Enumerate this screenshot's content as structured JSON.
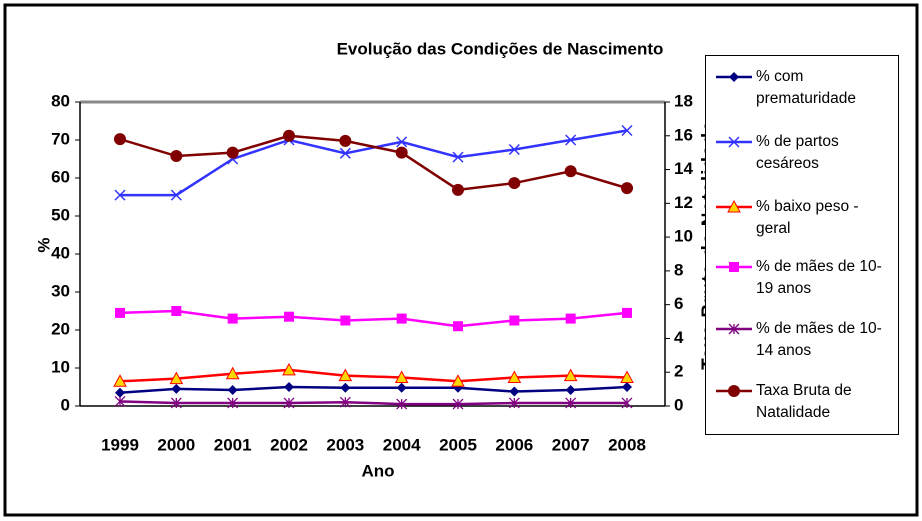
{
  "chart_data": {
    "type": "line",
    "title": "Evolução das Condições de Nascimento",
    "x_label": "Ano",
    "y_label": "%",
    "y2_label": "Taxa Bruta de Natalidade",
    "categories": [
      "1999",
      "2000",
      "2001",
      "2002",
      "2003",
      "2004",
      "2005",
      "2006",
      "2007",
      "2008"
    ],
    "ylim": [
      0,
      80
    ],
    "yticks": [
      0,
      10,
      20,
      30,
      40,
      50,
      60,
      70,
      80
    ],
    "y2lim": [
      0,
      18
    ],
    "y2ticks": [
      0,
      2,
      4,
      6,
      8,
      10,
      12,
      14,
      16,
      18
    ],
    "grid": false,
    "legend": "right",
    "series": [
      {
        "name": "% com prematuridade",
        "color": "#000080",
        "marker": "diamond",
        "values": [
          3.5,
          4.5,
          4.2,
          5.0,
          4.8,
          4.8,
          4.8,
          3.8,
          4.2,
          5.0
        ]
      },
      {
        "name": "% de partos cesáreos",
        "color": "#3333ff",
        "marker": "x",
        "values": [
          55.5,
          55.5,
          65,
          70,
          66.5,
          69.5,
          65.5,
          67.5,
          70,
          72.5
        ]
      },
      {
        "name": "% baixo peso - geral",
        "color": "#ff0000",
        "marker": "triangle",
        "values": [
          6.5,
          7.2,
          8.5,
          9.5,
          8,
          7.5,
          6.5,
          7.5,
          8,
          7.5
        ]
      },
      {
        "name": "% de mães de 10-19 anos",
        "color": "#ff00ff",
        "marker": "square",
        "values": [
          24.5,
          25,
          23,
          23.5,
          22.5,
          23,
          21,
          22.5,
          23,
          24.5
        ]
      },
      {
        "name": "% de mães de 10-14 anos",
        "color": "#800080",
        "marker": "asterisk",
        "values": [
          1.2,
          0.8,
          0.8,
          0.8,
          1,
          0.5,
          0.5,
          0.8,
          0.8,
          0.8
        ]
      },
      {
        "name": "Taxa Bruta de Natalidade",
        "color": "#800000",
        "marker": "circle",
        "axis": "y2",
        "values": [
          15.8,
          14.8,
          15.0,
          16.0,
          15.7,
          15.0,
          12.8,
          13.2,
          13.9,
          12.9
        ]
      }
    ]
  }
}
